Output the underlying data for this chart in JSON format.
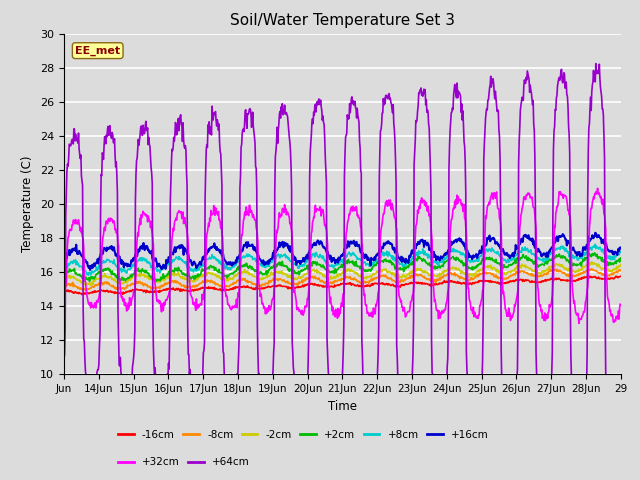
{
  "title": "Soil/Water Temperature Set 3",
  "xlabel": "Time",
  "ylabel": "Temperature (C)",
  "ylim": [
    10,
    30
  ],
  "xlim": [
    0,
    960
  ],
  "xtick_labels": [
    "Jun",
    "14Jun",
    "15Jun",
    "16Jun",
    "17Jun",
    "18Jun",
    "19Jun",
    "20Jun",
    "21Jun",
    "22Jun",
    "23Jun",
    "24Jun",
    "25Jun",
    "26Jun",
    "27Jun",
    "28Jun",
    "29"
  ],
  "xtick_positions": [
    0,
    60,
    120,
    180,
    240,
    300,
    360,
    420,
    480,
    540,
    600,
    660,
    720,
    780,
    840,
    900,
    960
  ],
  "ytick_values": [
    10,
    12,
    14,
    16,
    18,
    20,
    22,
    24,
    26,
    28,
    30
  ],
  "bg_color": "#dcdcdc",
  "plot_bg_color": "#dcdcdc",
  "grid_color": "#ffffff",
  "annotation_text": "EE_met",
  "annotation_box_color": "#ffff99",
  "annotation_text_color": "#8b0000",
  "series": [
    {
      "label": "-16cm",
      "color": "#ff0000",
      "lw": 1.2
    },
    {
      "label": "-8cm",
      "color": "#ff8800",
      "lw": 1.2
    },
    {
      "label": "-2cm",
      "color": "#cccc00",
      "lw": 1.2
    },
    {
      "label": "+2cm",
      "color": "#00bb00",
      "lw": 1.2
    },
    {
      "label": "+8cm",
      "color": "#00cccc",
      "lw": 1.2
    },
    {
      "label": "+16cm",
      "color": "#0000cc",
      "lw": 1.5
    },
    {
      "label": "+32cm",
      "color": "#ff00ff",
      "lw": 1.2
    },
    {
      "label": "+64cm",
      "color": "#9900cc",
      "lw": 1.2
    }
  ]
}
